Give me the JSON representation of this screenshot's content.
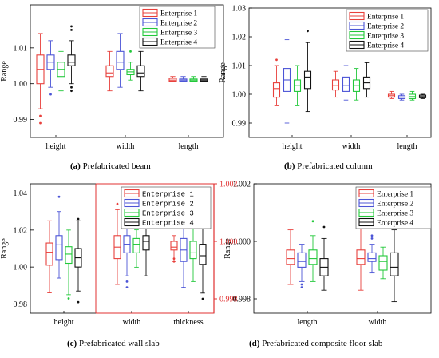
{
  "figure": {
    "captions": [
      {
        "letter": "(a)",
        "text": "Prefabricated beam"
      },
      {
        "letter": "(b)",
        "text": "Prefabricated column"
      },
      {
        "letter": "(c)",
        "text": "Prefabricated wall slab"
      },
      {
        "letter": "(d)",
        "text": "Prefabricated composite floor slab"
      }
    ]
  },
  "colors": {
    "Enterprise 1": "#e8403c",
    "Enterprise 2": "#4b54d6",
    "Enterprise 3": "#22c83a",
    "Enterprise 4": "#111111",
    "right_axis": "#e03030"
  },
  "chart_data": [
    {
      "id": "a",
      "type": "box",
      "ylabel": "Range",
      "ylim": [
        0.985,
        1.022
      ],
      "yticks": [
        "0.99",
        "1.00",
        "1.01"
      ],
      "ytick_values": [
        0.99,
        1.0,
        1.01
      ],
      "legend": [
        "Enterprise 1",
        "Enterprise 2",
        "Enterprise 3",
        "Enterprise 4"
      ],
      "categories": [
        "height",
        "width",
        "length"
      ],
      "series": [
        {
          "name": "Enterprise 1",
          "boxes": [
            {
              "whislo": 0.993,
              "q1": 1.0,
              "med": 1.004,
              "q3": 1.008,
              "whishi": 1.014,
              "fliers": [
                0.991,
                0.989
              ]
            },
            {
              "whislo": 0.998,
              "q1": 1.002,
              "med": 1.003,
              "q3": 1.005,
              "whishi": 1.009,
              "fliers": []
            },
            {
              "whislo": 1.0005,
              "q1": 1.0007,
              "med": 1.001,
              "q3": 1.0015,
              "whishi": 1.002,
              "fliers": []
            }
          ]
        },
        {
          "name": "Enterprise 2",
          "boxes": [
            {
              "whislo": 0.999,
              "q1": 1.004,
              "med": 1.006,
              "q3": 1.008,
              "whishi": 1.012,
              "fliers": [
                0.997
              ]
            },
            {
              "whislo": 0.999,
              "q1": 1.004,
              "med": 1.006,
              "q3": 1.009,
              "whishi": 1.014,
              "fliers": []
            },
            {
              "whislo": 1.0005,
              "q1": 1.0007,
              "med": 1.001,
              "q3": 1.0013,
              "whishi": 1.002,
              "fliers": []
            }
          ]
        },
        {
          "name": "Enterprise 3",
          "boxes": [
            {
              "whislo": 0.998,
              "q1": 1.002,
              "med": 1.004,
              "q3": 1.006,
              "whishi": 1.009,
              "fliers": []
            },
            {
              "whislo": 1.001,
              "q1": 1.0025,
              "med": 1.0033,
              "q3": 1.004,
              "whishi": 1.006,
              "fliers": [
                1.009
              ]
            },
            {
              "whislo": 1.0005,
              "q1": 1.0007,
              "med": 1.001,
              "q3": 1.0013,
              "whishi": 1.002,
              "fliers": []
            }
          ]
        },
        {
          "name": "Enterprise 4",
          "boxes": [
            {
              "whislo": 1.0,
              "q1": 1.005,
              "med": 1.006,
              "q3": 1.008,
              "whishi": 1.012,
              "fliers": [
                1.016,
                1.015,
                0.999,
                0.998
              ]
            },
            {
              "whislo": 0.998,
              "q1": 1.002,
              "med": 1.003,
              "q3": 1.005,
              "whishi": 1.009,
              "fliers": []
            },
            {
              "whislo": 1.0005,
              "q1": 1.0007,
              "med": 1.001,
              "q3": 1.0013,
              "whishi": 1.002,
              "fliers": []
            }
          ]
        }
      ]
    },
    {
      "id": "b",
      "type": "box",
      "ylabel": "Range",
      "ylim": [
        0.985,
        1.03
      ],
      "yticks": [
        "0.99",
        "1.00",
        "1.01",
        "1.02",
        "1.03"
      ],
      "ytick_values": [
        0.99,
        1.0,
        1.01,
        1.02,
        1.03
      ],
      "legend": [
        "Enterprise 1",
        "Enterprise 2",
        "Enterprise 3",
        "Enterprise 4"
      ],
      "categories": [
        "height",
        "width",
        "length"
      ],
      "series": [
        {
          "name": "Enterprise 1",
          "boxes": [
            {
              "whislo": 0.996,
              "q1": 0.999,
              "med": 1.002,
              "q3": 1.004,
              "whishi": 1.01,
              "fliers": [
                1.012
              ]
            },
            {
              "whislo": 0.999,
              "q1": 1.0015,
              "med": 1.003,
              "q3": 1.005,
              "whishi": 1.008,
              "fliers": []
            },
            {
              "whislo": 0.9985,
              "q1": 0.999,
              "med": 0.9995,
              "q3": 1.0,
              "whishi": 1.001,
              "fliers": []
            }
          ]
        },
        {
          "name": "Enterprise 2",
          "boxes": [
            {
              "whislo": 0.99,
              "q1": 1.001,
              "med": 1.005,
              "q3": 1.009,
              "whishi": 1.019,
              "fliers": []
            },
            {
              "whislo": 0.998,
              "q1": 1.001,
              "med": 1.003,
              "q3": 1.006,
              "whishi": 1.01,
              "fliers": []
            },
            {
              "whislo": 0.998,
              "q1": 0.9985,
              "med": 0.999,
              "q3": 0.9995,
              "whishi": 1.0,
              "fliers": []
            }
          ]
        },
        {
          "name": "Enterprise 3",
          "boxes": [
            {
              "whislo": 0.996,
              "q1": 1.001,
              "med": 1.003,
              "q3": 1.005,
              "whishi": 1.01,
              "fliers": []
            },
            {
              "whislo": 0.998,
              "q1": 1.001,
              "med": 1.003,
              "q3": 1.005,
              "whishi": 1.009,
              "fliers": []
            },
            {
              "whislo": 0.998,
              "q1": 0.9985,
              "med": 0.9992,
              "q3": 1.0,
              "whishi": 1.001,
              "fliers": []
            }
          ]
        },
        {
          "name": "Enterprise 4",
          "boxes": [
            {
              "whislo": 0.994,
              "q1": 1.002,
              "med": 1.006,
              "q3": 1.008,
              "whishi": 1.018,
              "fliers": [
                1.022
              ]
            },
            {
              "whislo": 0.999,
              "q1": 1.002,
              "med": 1.004,
              "q3": 1.006,
              "whishi": 1.011,
              "fliers": []
            },
            {
              "whislo": 0.9985,
              "q1": 0.9988,
              "med": 0.9992,
              "q3": 0.9997,
              "whishi": 1.0,
              "fliers": []
            }
          ]
        }
      ]
    },
    {
      "id": "c",
      "type": "box",
      "ylabel": "Range",
      "ylim": [
        0.975,
        1.045
      ],
      "yticks": [
        "0.98",
        "1.00",
        "1.02",
        "1.04"
      ],
      "ytick_values": [
        0.98,
        1.0,
        1.02,
        1.04
      ],
      "y2lim": [
        0.9975,
        1.002
      ],
      "y2ticks": [
        "0.998",
        "1.000",
        "1.002"
      ],
      "y2tick_values": [
        0.998,
        1.0,
        1.002
      ],
      "legend": [
        "Enterprise 1",
        "Enterprise 2",
        "Enterprise 3",
        "Enterprise 4"
      ],
      "categories": [
        "height",
        "width",
        "thickness"
      ],
      "category_axis": [
        "left",
        "right",
        "right"
      ],
      "series": [
        {
          "name": "Enterprise 1",
          "boxes": [
            {
              "whislo": 0.986,
              "q1": 1.001,
              "med": 1.008,
              "q3": 1.013,
              "whishi": 1.025,
              "fliers": []
            },
            {
              "whislo": 0.9985,
              "q1": 0.9994,
              "med": 0.9998,
              "q3": 1.0002,
              "whishi": 1.0011,
              "fliers": [
                1.0013
              ]
            },
            {
              "whislo": 0.9993,
              "q1": 0.9997,
              "med": 0.9998,
              "q3": 1.0,
              "whishi": 1.0002,
              "fliers": [
                0.9994,
                0.9993
              ]
            }
          ]
        },
        {
          "name": "Enterprise 2",
          "boxes": [
            {
              "whislo": 0.994,
              "q1": 1.004,
              "med": 1.012,
              "q3": 1.017,
              "whishi": 1.03,
              "fliers": [
                1.038
              ]
            },
            {
              "whislo": 0.9988,
              "q1": 0.9996,
              "med": 0.9999,
              "q3": 1.0002,
              "whishi": 1.0009,
              "fliers": [
                0.9986,
                0.9984,
                1.0013
              ]
            },
            {
              "whislo": 0.9984,
              "q1": 0.9993,
              "med": 0.9997,
              "q3": 1.0001,
              "whishi": 1.0008,
              "fliers": []
            }
          ]
        },
        {
          "name": "Enterprise 3",
          "boxes": [
            {
              "whislo": 0.985,
              "q1": 1.002,
              "med": 1.007,
              "q3": 1.011,
              "whishi": 1.02,
              "fliers": [
                0.983
              ]
            },
            {
              "whislo": 0.9991,
              "q1": 0.9996,
              "med": 0.9999,
              "q3": 1.0001,
              "whishi": 1.0004,
              "fliers": []
            },
            {
              "whislo": 0.9986,
              "q1": 0.9994,
              "med": 0.9996,
              "q3": 1.0,
              "whishi": 1.0006,
              "fliers": [
                1.0012
              ]
            }
          ]
        },
        {
          "name": "Enterprise 4",
          "boxes": [
            {
              "whislo": 0.987,
              "q1": 1.0,
              "med": 1.005,
              "q3": 1.01,
              "whishi": 1.025,
              "fliers": [
                1.026,
                0.981
              ]
            },
            {
              "whislo": 0.9988,
              "q1": 0.9997,
              "med": 1.0,
              "q3": 1.0002,
              "whishi": 1.0008,
              "fliers": [
                1.0011
              ]
            },
            {
              "whislo": 0.9982,
              "q1": 0.9992,
              "med": 0.9995,
              "q3": 0.9999,
              "whishi": 1.0008,
              "fliers": [
                1.0013,
                1.0009,
                0.998
              ]
            }
          ]
        }
      ]
    },
    {
      "id": "d",
      "type": "box",
      "ylabel": "Range",
      "ylim": [
        0.9975,
        1.002
      ],
      "yticks": [
        "0.998",
        "1.000",
        "1.002"
      ],
      "ytick_values": [
        0.998,
        1.0,
        1.002
      ],
      "legend": [
        "Enterprise 1",
        "Enterprise 2",
        "Enterprise 3",
        "Enterprise 4"
      ],
      "categories": [
        "length",
        "width"
      ],
      "series": [
        {
          "name": "Enterprise 1",
          "boxes": [
            {
              "whislo": 0.9985,
              "q1": 0.9992,
              "med": 0.9994,
              "q3": 0.9997,
              "whishi": 1.0004,
              "fliers": []
            },
            {
              "whislo": 0.9983,
              "q1": 0.9992,
              "med": 0.9994,
              "q3": 0.9997,
              "whishi": 1.0008,
              "fliers": []
            }
          ]
        },
        {
          "name": "Enterprise 2",
          "boxes": [
            {
              "whislo": 0.9986,
              "q1": 0.9991,
              "med": 0.9993,
              "q3": 0.9996,
              "whishi": 0.9999,
              "fliers": [
                0.9985,
                0.9984
              ]
            },
            {
              "whislo": 0.9989,
              "q1": 0.9993,
              "med": 0.9994,
              "q3": 0.9996,
              "whishi": 0.9999,
              "fliers": [
                1.0002,
                1.0001
              ]
            }
          ]
        },
        {
          "name": "Enterprise 3",
          "boxes": [
            {
              "whislo": 0.9986,
              "q1": 0.9992,
              "med": 0.9994,
              "q3": 0.9997,
              "whishi": 1.0002,
              "fliers": [
                1.0007
              ]
            },
            {
              "whislo": 0.9987,
              "q1": 0.999,
              "med": 0.9993,
              "q3": 0.9995,
              "whishi": 0.9998,
              "fliers": []
            }
          ]
        },
        {
          "name": "Enterprise 4",
          "boxes": [
            {
              "whislo": 0.9983,
              "q1": 0.9988,
              "med": 0.9991,
              "q3": 0.9994,
              "whishi": 1.0001,
              "fliers": [
                1.0005
              ]
            },
            {
              "whislo": 0.9979,
              "q1": 0.9988,
              "med": 0.9991,
              "q3": 0.9996,
              "whishi": 1.0004,
              "fliers": []
            }
          ]
        }
      ]
    }
  ]
}
